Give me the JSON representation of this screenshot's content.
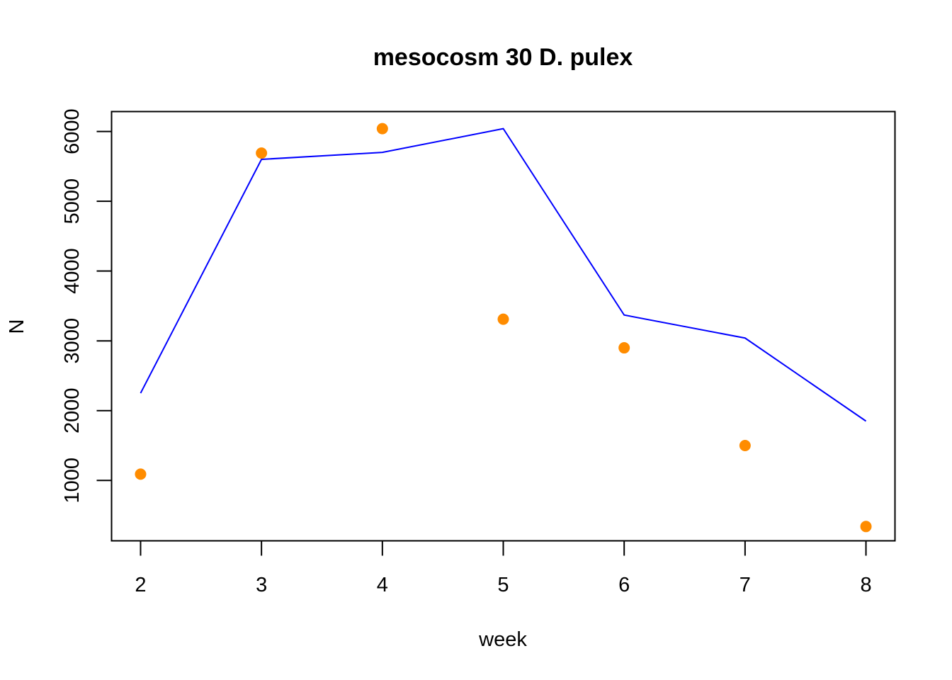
{
  "chart_data": {
    "type": "line",
    "title": "mesocosm 30 D. pulex",
    "xlabel": "week",
    "ylabel": "N",
    "xlim": [
      1.76,
      8.24
    ],
    "ylim": [
      135,
      6285
    ],
    "x_ticks": [
      2,
      3,
      4,
      5,
      6,
      7,
      8
    ],
    "x_tick_labels": [
      "2",
      "3",
      "4",
      "5",
      "6",
      "7",
      "8"
    ],
    "y_ticks": [
      1000,
      2000,
      3000,
      4000,
      5000,
      6000
    ],
    "y_tick_labels": [
      "1000",
      "2000",
      "3000",
      "4000",
      "5000",
      "6000"
    ],
    "grid": false,
    "series": [
      {
        "type": "line",
        "color": "#0000ff",
        "x": [
          2,
          3,
          4,
          5,
          6,
          7,
          8
        ],
        "values": [
          2250,
          5600,
          5700,
          6040,
          3370,
          3040,
          1850
        ]
      },
      {
        "type": "scatter",
        "color": "#ff8c00",
        "x": [
          2,
          3,
          4,
          5,
          6,
          7,
          8
        ],
        "values": [
          1090,
          5690,
          6040,
          3310,
          2900,
          1500,
          340
        ]
      }
    ]
  }
}
